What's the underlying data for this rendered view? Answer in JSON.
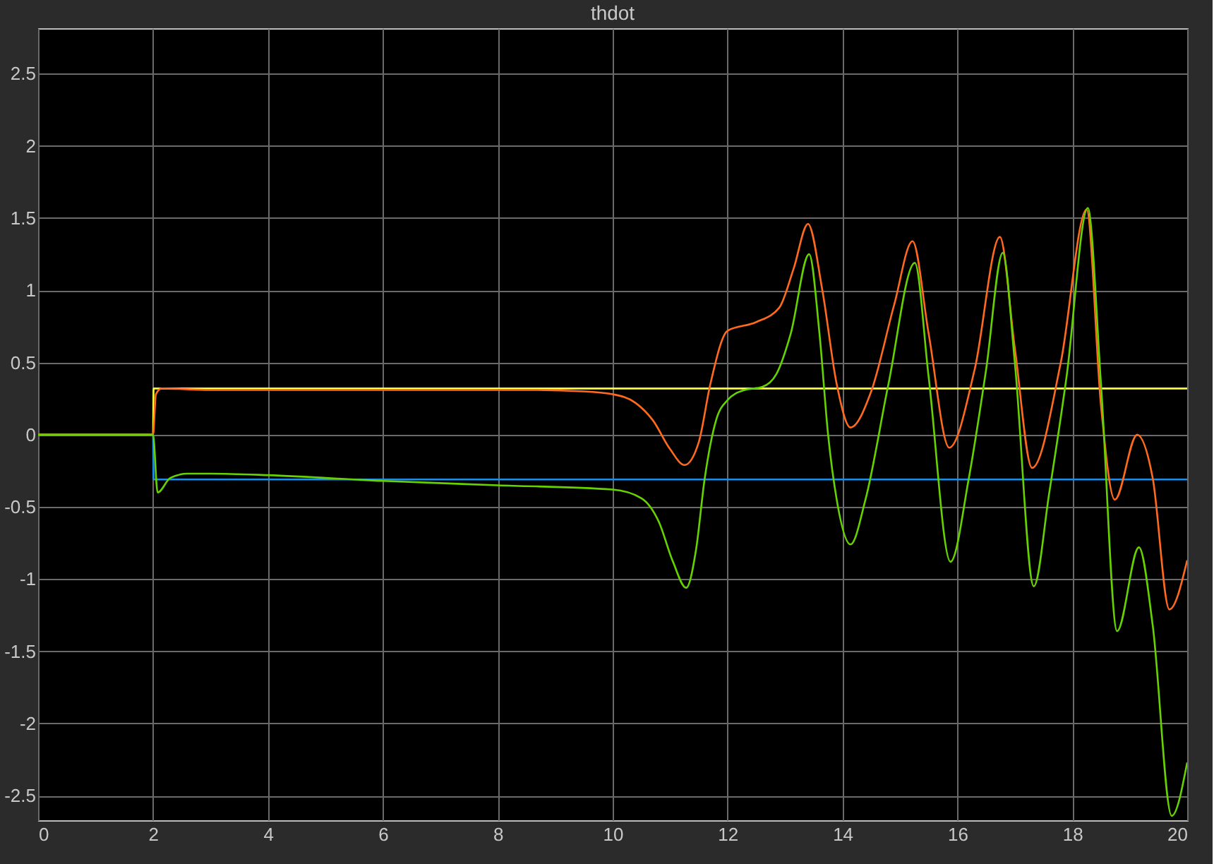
{
  "chart_data": {
    "type": "line",
    "title": "thdot",
    "xlim": [
      0,
      20
    ],
    "xticks": [
      0,
      2,
      4,
      6,
      8,
      10,
      12,
      14,
      16,
      18,
      20
    ],
    "ylim": [
      -2.67,
      2.815
    ],
    "yticks": [
      -2.5,
      -2,
      -1.5,
      -1,
      -0.5,
      0,
      0.5,
      1,
      1.5,
      2,
      2.5
    ],
    "grid": true,
    "marker": "none",
    "line_style": "solid",
    "series": [
      {
        "color": "#ffff33",
        "x": [
          0,
          2,
          2.01,
          20
        ],
        "values": [
          0,
          0,
          0.32,
          0.32
        ]
      },
      {
        "color": "#1e8fe6",
        "x": [
          0,
          2,
          2.01,
          20
        ],
        "values": [
          0,
          0,
          -0.31,
          -0.31
        ]
      },
      {
        "color": "#ff6a1e",
        "x": [
          0,
          2,
          2.05,
          2.15,
          3,
          5,
          7,
          8.5,
          9.5,
          10,
          10.4,
          10.7,
          11,
          11.25,
          11.5,
          11.7,
          12,
          12.5,
          12.9,
          13.15,
          13.4,
          13.65,
          13.9,
          14.14,
          14.5,
          14.9,
          15.22,
          15.5,
          15.86,
          16.3,
          16.74,
          17.0,
          17.3,
          17.8,
          18.25,
          18.5,
          18.74,
          19.13,
          19.4,
          19.69,
          20
        ],
        "values": [
          0,
          0,
          0.28,
          0.32,
          0.31,
          0.31,
          0.31,
          0.31,
          0.3,
          0.28,
          0.22,
          0.1,
          -0.1,
          -0.21,
          -0.05,
          0.35,
          0.72,
          0.78,
          0.88,
          1.15,
          1.46,
          1.0,
          0.35,
          0.05,
          0.3,
          0.9,
          1.34,
          0.7,
          -0.09,
          0.45,
          1.37,
          0.6,
          -0.23,
          0.5,
          1.56,
          0.2,
          -0.45,
          0.0,
          -0.3,
          -1.21,
          -0.87
        ]
      },
      {
        "color": "#66d200",
        "x": [
          0,
          2,
          2.08,
          2.3,
          2.6,
          3,
          4,
          6,
          8,
          10,
          10.5,
          10.8,
          11.05,
          11.28,
          11.45,
          11.6,
          11.8,
          12,
          12.3,
          12.6,
          12.85,
          13.1,
          13.42,
          13.6,
          13.75,
          13.9,
          14.14,
          14.4,
          14.8,
          15.26,
          15.5,
          15.88,
          16.2,
          16.5,
          16.79,
          17.0,
          17.33,
          17.6,
          17.9,
          18.27,
          18.5,
          18.78,
          19.16,
          19.4,
          19.73,
          20
        ],
        "values": [
          0,
          0,
          -0.4,
          -0.3,
          -0.27,
          -0.27,
          -0.28,
          -0.32,
          -0.35,
          -0.38,
          -0.44,
          -0.6,
          -0.88,
          -1.06,
          -0.8,
          -0.31,
          0.1,
          0.24,
          0.31,
          0.33,
          0.42,
          0.7,
          1.25,
          0.7,
          0.0,
          -0.45,
          -0.76,
          -0.45,
          0.35,
          1.19,
          0.4,
          -0.88,
          -0.3,
          0.45,
          1.26,
          0.5,
          -1.05,
          -0.4,
          0.4,
          1.57,
          0.35,
          -1.36,
          -0.78,
          -1.32,
          -2.64,
          -2.27
        ]
      }
    ]
  }
}
